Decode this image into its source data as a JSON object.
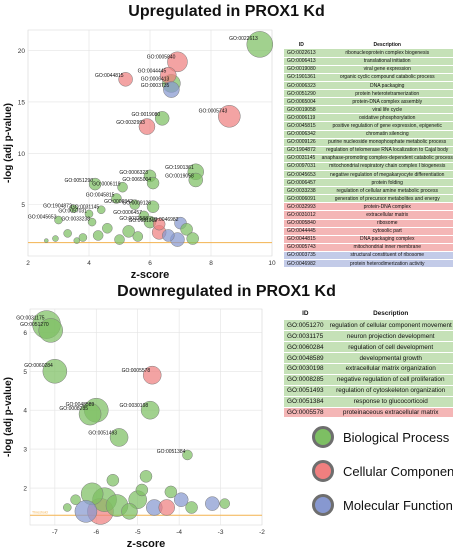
{
  "colors": {
    "Biological Process": "#7dbf63",
    "Cellular Component": "#ef7f7f",
    "Molecular Function": "#8798d0",
    "bp_row": "#c5e1b7",
    "cc_row": "#f4b6b6",
    "mf_row": "#c3cbe8",
    "threshold": "#f3b24f"
  },
  "chart_data": [
    {
      "type": "scatter",
      "title": "Upregulated in PROX1 Kd",
      "xlabel": "z-score",
      "ylabel": "-log (adj p-value)",
      "xlim": [
        2,
        10
      ],
      "ylim": [
        0,
        22
      ],
      "xticks": [
        2,
        4,
        6,
        8,
        10
      ],
      "yticks": [
        5,
        10,
        15,
        20
      ],
      "grid": true,
      "threshold_y": 1.3,
      "points": [
        {
          "x": 9.6,
          "y": 20.6,
          "r": 13,
          "cat": "Biological Process",
          "label": "GO:0022613"
        },
        {
          "x": 6.9,
          "y": 18.9,
          "r": 10,
          "cat": "Cellular Component",
          "label": "GO:0005840"
        },
        {
          "x": 6.6,
          "y": 17.6,
          "r": 8,
          "cat": "Cellular Component",
          "label": "GO:0044445"
        },
        {
          "x": 5.2,
          "y": 17.2,
          "r": 7,
          "cat": "Cellular Component",
          "label": "GO:0044815"
        },
        {
          "x": 6.7,
          "y": 16.8,
          "r": 9,
          "cat": "Biological Process",
          "label": "GO:0006413"
        },
        {
          "x": 6.7,
          "y": 16.2,
          "r": 8,
          "cat": "Molecular Function",
          "label": "GO:0003735"
        },
        {
          "x": 8.6,
          "y": 13.6,
          "r": 11,
          "cat": "Cellular Component",
          "label": "GO:0005743"
        },
        {
          "x": 6.4,
          "y": 13.4,
          "r": 7,
          "cat": "Biological Process",
          "label": "GO:0019080"
        },
        {
          "x": 5.9,
          "y": 12.6,
          "r": 8,
          "cat": "Cellular Component",
          "label": "GO:0032993"
        },
        {
          "x": 7.5,
          "y": 8.2,
          "r": 8,
          "cat": "Biological Process",
          "label": "GO:1901361"
        },
        {
          "x": 7.5,
          "y": 7.4,
          "r": 7,
          "cat": "Biological Process",
          "label": "GO:0019058"
        },
        {
          "x": 6.0,
          "y": 7.8,
          "r": 6,
          "cat": "Biological Process",
          "label": "GO:0006323"
        },
        {
          "x": 6.1,
          "y": 7.1,
          "r": 6,
          "cat": "Biological Process",
          "label": "GO:0065004"
        },
        {
          "x": 4.2,
          "y": 7.0,
          "r": 6,
          "cat": "Biological Process",
          "label": "GO:0051290"
        },
        {
          "x": 5.1,
          "y": 6.7,
          "r": 5,
          "cat": "Biological Process",
          "label": "GO:0006119"
        },
        {
          "x": 4.9,
          "y": 5.6,
          "r": 5,
          "cat": "Biological Process",
          "label": "GO:0045815"
        },
        {
          "x": 5.5,
          "y": 5.0,
          "r": 5,
          "cat": "Biological Process",
          "label": "GO:0006342"
        },
        {
          "x": 6.1,
          "y": 4.8,
          "r": 6,
          "cat": "Biological Process",
          "label": "GO:0009126"
        },
        {
          "x": 3.5,
          "y": 4.6,
          "r": 4,
          "cat": "Biological Process",
          "label": "GO:1904872"
        },
        {
          "x": 4.4,
          "y": 4.5,
          "r": 4,
          "cat": "Biological Process",
          "label": "GO:0031145"
        },
        {
          "x": 4.0,
          "y": 4.1,
          "r": 4,
          "cat": "Biological Process",
          "label": "GO:0097031"
        },
        {
          "x": 3.0,
          "y": 3.5,
          "r": 4,
          "cat": "Biological Process",
          "label": "GO:0045653"
        },
        {
          "x": 4.1,
          "y": 3.3,
          "r": 4,
          "cat": "Biological Process",
          "label": "GO:0033238"
        },
        {
          "x": 5.8,
          "y": 3.9,
          "r": 5,
          "cat": "Biological Process",
          "label": "GO:0006457"
        },
        {
          "x": 6.0,
          "y": 3.3,
          "r": 6,
          "cat": "Biological Process",
          "label": "GO:0032588"
        },
        {
          "x": 6.3,
          "y": 3.1,
          "r": 6,
          "cat": "Cellular Component",
          "label": "GO:0031012"
        },
        {
          "x": 7.0,
          "y": 3.2,
          "r": 6,
          "cat": "Molecular Function",
          "label": "GO:0046982"
        },
        {
          "x": 6.3,
          "y": 2.3,
          "r": 7,
          "cat": "Cellular Component",
          "label": ""
        },
        {
          "x": 6.6,
          "y": 2.0,
          "r": 6,
          "cat": "Molecular Function",
          "label": ""
        },
        {
          "x": 4.6,
          "y": 2.7,
          "r": 5,
          "cat": "Biological Process",
          "label": ""
        },
        {
          "x": 5.3,
          "y": 2.4,
          "r": 6,
          "cat": "Biological Process",
          "label": ""
        },
        {
          "x": 3.3,
          "y": 2.2,
          "r": 4,
          "cat": "Biological Process",
          "label": ""
        },
        {
          "x": 2.9,
          "y": 1.7,
          "r": 3,
          "cat": "Biological Process",
          "label": ""
        },
        {
          "x": 3.8,
          "y": 1.8,
          "r": 4,
          "cat": "Biological Process",
          "label": ""
        },
        {
          "x": 4.3,
          "y": 2.0,
          "r": 5,
          "cat": "Biological Process",
          "label": ""
        },
        {
          "x": 5.0,
          "y": 1.6,
          "r": 5,
          "cat": "Biological Process",
          "label": ""
        },
        {
          "x": 5.6,
          "y": 1.9,
          "r": 5,
          "cat": "Biological Process",
          "label": ""
        },
        {
          "x": 7.2,
          "y": 2.6,
          "r": 6,
          "cat": "Biological Process",
          "label": ""
        },
        {
          "x": 7.4,
          "y": 1.7,
          "r": 6,
          "cat": "Biological Process",
          "label": ""
        },
        {
          "x": 6.9,
          "y": 1.6,
          "r": 7,
          "cat": "Molecular Function",
          "label": ""
        },
        {
          "x": 2.6,
          "y": 1.5,
          "r": 2,
          "cat": "Biological Process",
          "label": ""
        },
        {
          "x": 3.6,
          "y": 1.5,
          "r": 3,
          "cat": "Biological Process",
          "label": ""
        }
      ]
    },
    {
      "type": "scatter",
      "title": "Downregulated in PROX1 Kd",
      "xlabel": "z-score",
      "ylabel": "-log (adj p-value)",
      "xlim": [
        -7.6,
        -2
      ],
      "ylim": [
        1.05,
        6.6
      ],
      "xticks": [
        -7,
        -6,
        -5,
        -4,
        -3,
        -2
      ],
      "yticks": [
        2,
        3,
        4,
        5,
        6
      ],
      "grid": true,
      "threshold_y": 1.3,
      "threshold_label": "Threshold",
      "points": [
        {
          "x": -7.2,
          "y": 6.2,
          "r": 14,
          "cat": "Biological Process",
          "label": "GO:0031175"
        },
        {
          "x": -7.1,
          "y": 6.05,
          "r": 12,
          "cat": "Biological Process",
          "label": "GO:0051270"
        },
        {
          "x": -7.0,
          "y": 5.0,
          "r": 12,
          "cat": "Biological Process",
          "label": "GO:0060284"
        },
        {
          "x": -6.0,
          "y": 4.0,
          "r": 12,
          "cat": "Biological Process",
          "label": "GO:0048589"
        },
        {
          "x": -6.15,
          "y": 3.9,
          "r": 11,
          "cat": "Biological Process",
          "label": "GO:0008285"
        },
        {
          "x": -4.65,
          "y": 4.9,
          "r": 9,
          "cat": "Cellular Component",
          "label": "GO:0005578"
        },
        {
          "x": -4.7,
          "y": 4.0,
          "r": 9,
          "cat": "Biological Process",
          "label": "GO:0030198"
        },
        {
          "x": -5.45,
          "y": 3.3,
          "r": 9,
          "cat": "Biological Process",
          "label": "GO:0051493"
        },
        {
          "x": -3.8,
          "y": 2.85,
          "r": 5,
          "cat": "Biological Process",
          "label": "GO:0051384"
        },
        {
          "x": -6.1,
          "y": 1.85,
          "r": 11,
          "cat": "Biological Process",
          "label": ""
        },
        {
          "x": -5.8,
          "y": 1.7,
          "r": 12,
          "cat": "Biological Process",
          "label": ""
        },
        {
          "x": -5.5,
          "y": 1.55,
          "r": 11,
          "cat": "Biological Process",
          "label": ""
        },
        {
          "x": -5.9,
          "y": 1.4,
          "r": 13,
          "cat": "Cellular Component",
          "label": ""
        },
        {
          "x": -6.25,
          "y": 1.4,
          "r": 11,
          "cat": "Molecular Function",
          "label": ""
        },
        {
          "x": -5.0,
          "y": 1.7,
          "r": 9,
          "cat": "Biological Process",
          "label": ""
        },
        {
          "x": -5.2,
          "y": 1.4,
          "r": 8,
          "cat": "Biological Process",
          "label": ""
        },
        {
          "x": -4.6,
          "y": 1.5,
          "r": 8,
          "cat": "Molecular Function",
          "label": ""
        },
        {
          "x": -4.3,
          "y": 1.5,
          "r": 8,
          "cat": "Cellular Component",
          "label": ""
        },
        {
          "x": -4.2,
          "y": 1.9,
          "r": 6,
          "cat": "Biological Process",
          "label": ""
        },
        {
          "x": -3.95,
          "y": 1.7,
          "r": 7,
          "cat": "Molecular Function",
          "label": ""
        },
        {
          "x": -3.7,
          "y": 1.5,
          "r": 6,
          "cat": "Biological Process",
          "label": ""
        },
        {
          "x": -3.2,
          "y": 1.6,
          "r": 7,
          "cat": "Molecular Function",
          "label": ""
        },
        {
          "x": -2.9,
          "y": 1.6,
          "r": 5,
          "cat": "Biological Process",
          "label": ""
        },
        {
          "x": -4.8,
          "y": 2.3,
          "r": 6,
          "cat": "Biological Process",
          "label": ""
        },
        {
          "x": -5.6,
          "y": 2.2,
          "r": 6,
          "cat": "Biological Process",
          "label": ""
        },
        {
          "x": -6.5,
          "y": 1.7,
          "r": 5,
          "cat": "Biological Process",
          "label": ""
        },
        {
          "x": -6.7,
          "y": 1.5,
          "r": 4,
          "cat": "Biological Process",
          "label": ""
        },
        {
          "x": -4.9,
          "y": 1.95,
          "r": 6,
          "cat": "Biological Process",
          "label": ""
        }
      ]
    }
  ],
  "tables": {
    "up": {
      "headers": [
        "ID",
        "Description"
      ],
      "rows": [
        {
          "id": "GO:0022613",
          "desc": "ribonucleoprotein complex biogenesis",
          "cat": "bp"
        },
        {
          "id": "GO:0006413",
          "desc": "translational initiation",
          "cat": "bp"
        },
        {
          "id": "GO:0019080",
          "desc": "viral gene expression",
          "cat": "bp"
        },
        {
          "id": "GO:1901361",
          "desc": "organic cyclic compound catabolic process",
          "cat": "bp"
        },
        {
          "id": "GO:0006323",
          "desc": "DNA packaging",
          "cat": "bp"
        },
        {
          "id": "GO:0051290",
          "desc": "protein heterotetramerization",
          "cat": "bp"
        },
        {
          "id": "GO:0065004",
          "desc": "protein-DNA complex assembly",
          "cat": "bp"
        },
        {
          "id": "GO:0019058",
          "desc": "viral life cycle",
          "cat": "bp"
        },
        {
          "id": "GO:0006119",
          "desc": "oxidative phosphorylation",
          "cat": "bp"
        },
        {
          "id": "GO:0045815",
          "desc": "positive regulation of gene expression, epigenetic",
          "cat": "bp"
        },
        {
          "id": "GO:0006342",
          "desc": "chromatin silencing",
          "cat": "bp"
        },
        {
          "id": "GO:0009126",
          "desc": "purine nucleoside monophosphate metabolic process",
          "cat": "bp"
        },
        {
          "id": "GO:1904872",
          "desc": "regulation of telomerase RNA localization to Cajal body",
          "cat": "bp"
        },
        {
          "id": "GO:0031145",
          "desc": "anaphase-promoting complex-dependent catabolic process",
          "cat": "bp"
        },
        {
          "id": "GO:0097031",
          "desc": "mitochondrial respiratory chain complex I biogenesis",
          "cat": "bp"
        },
        {
          "id": "GO:0045653",
          "desc": "negative regulation of megakaryocyte differentiation",
          "cat": "bp"
        },
        {
          "id": "GO:0006457",
          "desc": "protein folding",
          "cat": "bp"
        },
        {
          "id": "GO:0033238",
          "desc": "regulation of cellular amine metabolic process",
          "cat": "bp"
        },
        {
          "id": "GO:0006091",
          "desc": "generation of precursor metabolites and energy",
          "cat": "bp"
        },
        {
          "id": "GO:0032993",
          "desc": "protein-DNA complex",
          "cat": "cc"
        },
        {
          "id": "GO:0031012",
          "desc": "extracellular matrix",
          "cat": "cc"
        },
        {
          "id": "GO:0005840",
          "desc": "ribosome",
          "cat": "cc"
        },
        {
          "id": "GO:0044445",
          "desc": "cytosolic part",
          "cat": "cc"
        },
        {
          "id": "GO:0044815",
          "desc": "DNA packaging complex",
          "cat": "cc"
        },
        {
          "id": "GO:0005743",
          "desc": "mitochondrial inner membrane",
          "cat": "cc"
        },
        {
          "id": "GO:0003735",
          "desc": "structural constituent of ribosome",
          "cat": "mf"
        },
        {
          "id": "GO:0046982",
          "desc": "protein heterodimerization activity",
          "cat": "mf"
        }
      ]
    },
    "down": {
      "headers": [
        "ID",
        "Description"
      ],
      "rows": [
        {
          "id": "GO:0051270",
          "desc": "regulation of cellular component movement",
          "cat": "bp"
        },
        {
          "id": "GO:0031175",
          "desc": "neuron projection development",
          "cat": "bp"
        },
        {
          "id": "GO:0060284",
          "desc": "regulation of cell development",
          "cat": "bp"
        },
        {
          "id": "GO:0048589",
          "desc": "developmental growth",
          "cat": "bp"
        },
        {
          "id": "GO:0030198",
          "desc": "extracellular matrix organization",
          "cat": "bp"
        },
        {
          "id": "GO:0008285",
          "desc": "negative regulation of cell proliferation",
          "cat": "bp"
        },
        {
          "id": "GO:0051493",
          "desc": "regulation of cytoskeleton organization",
          "cat": "bp"
        },
        {
          "id": "GO:0051384",
          "desc": "response to glucocorticoid",
          "cat": "bp"
        },
        {
          "id": "GO:0005578",
          "desc": "proteinaceous extracellular matrix",
          "cat": "cc"
        }
      ]
    }
  },
  "legend": [
    {
      "label": "Biological Process",
      "cat": "Biological Process"
    },
    {
      "label": "Cellular Component",
      "cat": "Cellular Component"
    },
    {
      "label": "Molecular Function",
      "cat": "Molecular Function"
    }
  ]
}
